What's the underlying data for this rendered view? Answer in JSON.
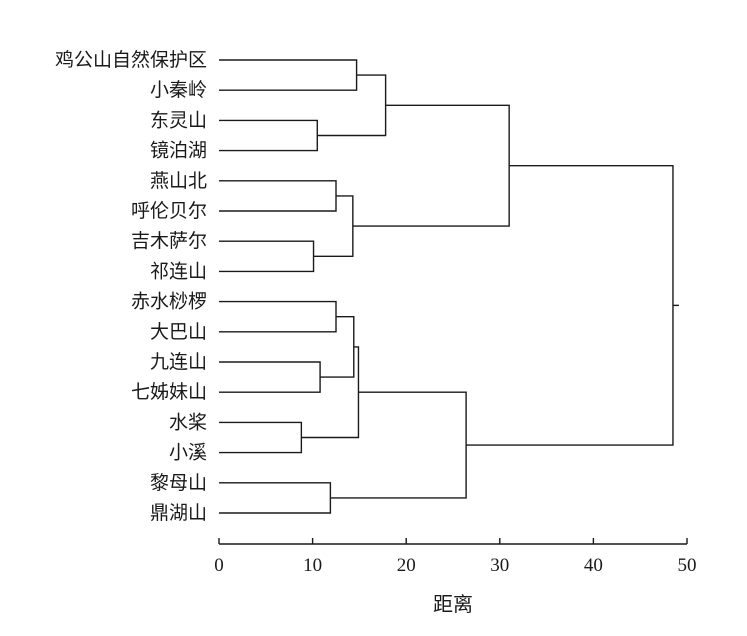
{
  "chart_data": {
    "type": "dendrogram",
    "xlabel": "距离",
    "xlim": [
      0,
      50
    ],
    "xticks": [
      0,
      10,
      20,
      30,
      40,
      50
    ],
    "leaves": [
      "鸡公山自然保护区",
      "小秦岭",
      "东灵山",
      "镜泊湖",
      "燕山北",
      "呼伦贝尔",
      "吉木萨尔",
      "祁连山",
      "赤水桫椤",
      "大巴山",
      "九连山",
      "七姊妹山",
      "水桨",
      "小溪",
      "黎母山",
      "鼎湖山"
    ],
    "merges": [
      {
        "id": "n1",
        "left": 0,
        "right": 1,
        "distance": 14.7
      },
      {
        "id": "n2",
        "left": 2,
        "right": 3,
        "distance": 10.5
      },
      {
        "id": "n3",
        "left": "n1",
        "right": "n2",
        "distance": 17.8
      },
      {
        "id": "n4",
        "left": 4,
        "right": 5,
        "distance": 12.5
      },
      {
        "id": "n5",
        "left": 6,
        "right": 7,
        "distance": 10.1
      },
      {
        "id": "n6",
        "left": "n4",
        "right": "n5",
        "distance": 14.3
      },
      {
        "id": "n7",
        "left": "n3",
        "right": "n6",
        "distance": 31.0
      },
      {
        "id": "n8",
        "left": 8,
        "right": 9,
        "distance": 12.5
      },
      {
        "id": "n9",
        "left": 10,
        "right": 11,
        "distance": 10.8
      },
      {
        "id": "n10",
        "left": "n8",
        "right": "n9",
        "distance": 14.4
      },
      {
        "id": "n11",
        "left": 12,
        "right": 13,
        "distance": 8.8
      },
      {
        "id": "n12",
        "left": "n10",
        "right": "n11",
        "distance": 14.9
      },
      {
        "id": "n13",
        "left": 14,
        "right": 15,
        "distance": 11.9
      },
      {
        "id": "n14",
        "left": "n12",
        "right": "n13",
        "distance": 26.4
      },
      {
        "id": "n15",
        "left": "n7",
        "right": "n14",
        "distance": 48.5
      }
    ]
  }
}
